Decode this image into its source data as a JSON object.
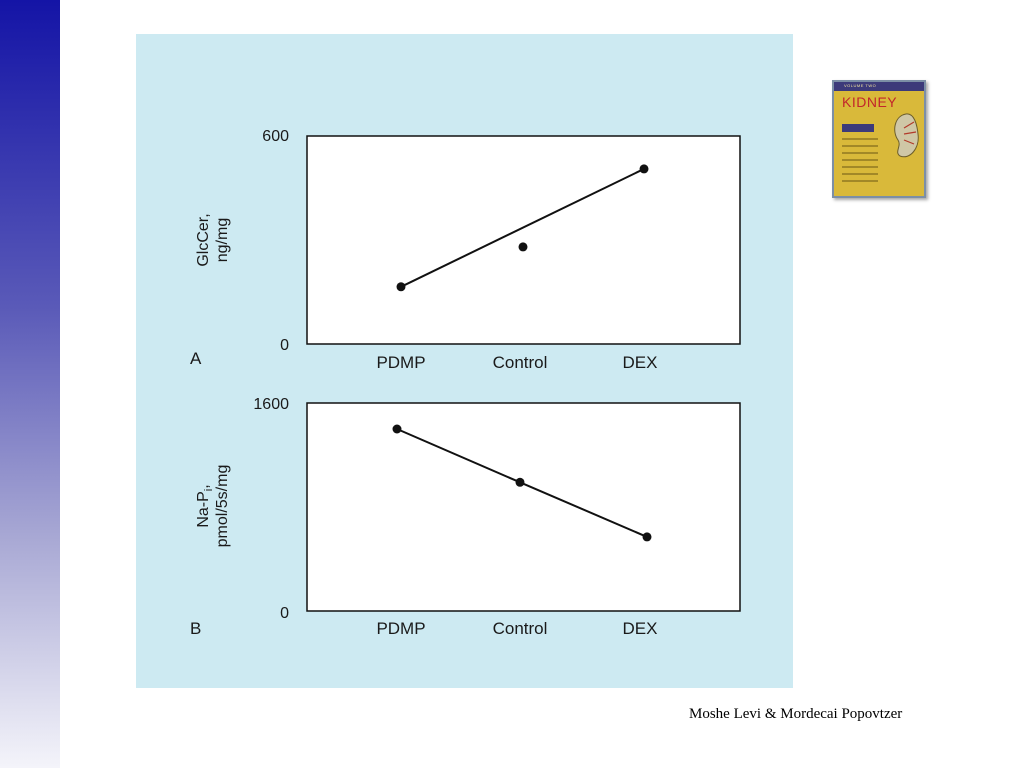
{
  "chart_data": [
    {
      "type": "scatter",
      "panel_label": "A",
      "ylabel_lines": [
        "GlcCer,",
        "ng/mg"
      ],
      "ylabel_sub": "",
      "categories": [
        "PDMP",
        "Control",
        "DEX"
      ],
      "ytick_labels": [
        "600",
        "0"
      ],
      "ylim": [
        0,
        600
      ],
      "points": [
        {
          "x": "PDMP",
          "y": 165
        },
        {
          "x": "Control",
          "y": 280
        },
        {
          "x": "DEX",
          "y": 505
        }
      ],
      "fit_line": {
        "x_start": "PDMP",
        "y_start": 165,
        "x_end": "DEX",
        "y_end": 505
      },
      "grid": false
    },
    {
      "type": "line",
      "panel_label": "B",
      "ylabel_lines": [
        "Na-P",
        "pmol/5s/mg"
      ],
      "ylabel_sub": "i",
      "categories": [
        "PDMP",
        "Control",
        "DEX"
      ],
      "ytick_labels": [
        "1600",
        "0"
      ],
      "ylim": [
        0,
        1600
      ],
      "points": [
        {
          "x": "PDMP",
          "y": 1400
        },
        {
          "x": "Control",
          "y": 990
        },
        {
          "x": "DEX",
          "y": 570
        }
      ],
      "grid": false
    }
  ],
  "book": {
    "band": "VOLUME TWO",
    "title": "KIDNEY"
  },
  "credit": "Moshe Levi & Mordecai Popovtzer",
  "colors": {
    "panel_bg": "#cdeaf2",
    "plot_bg": "#ffffff",
    "ink": "#111111",
    "side_bar_top": "#1414a6"
  }
}
